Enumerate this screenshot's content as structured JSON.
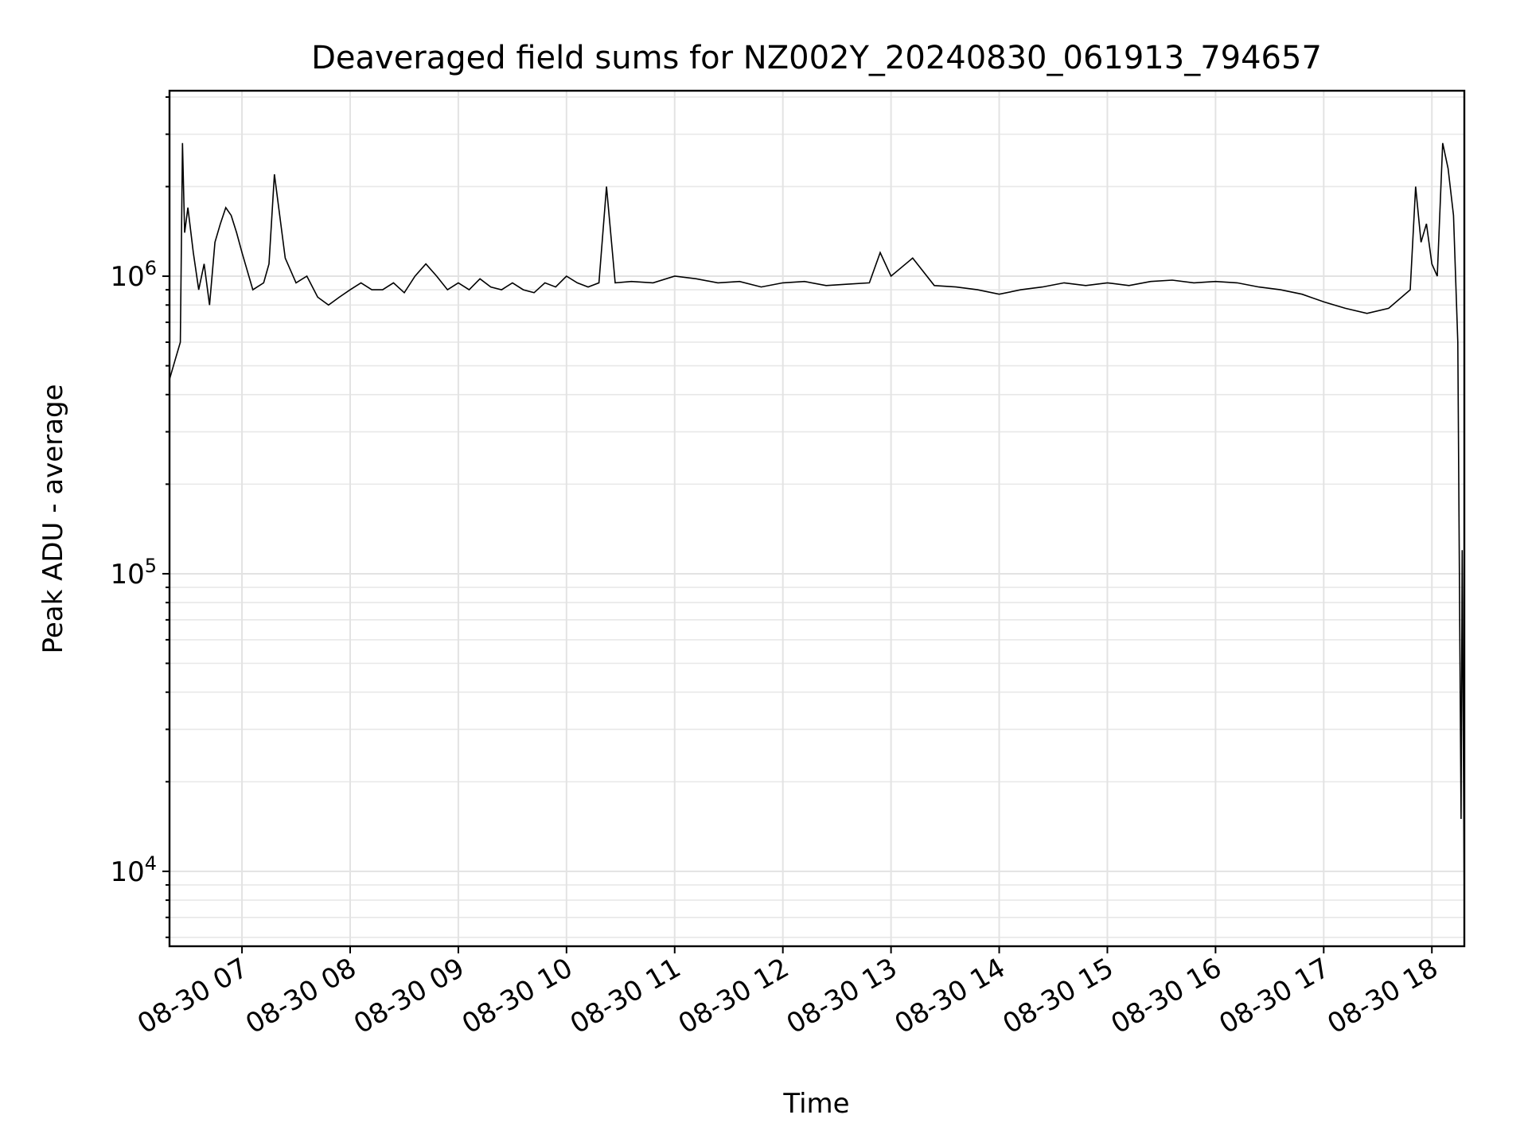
{
  "chart_data": {
    "type": "line",
    "title": "Deaveraged field sums for NZ002Y_20240830_061913_794657",
    "xlabel": "Time",
    "ylabel": "Peak ADU - average",
    "y_scale": "log",
    "ylim": [
      5600,
      4200000
    ],
    "y_ticks": [
      {
        "value": 10000,
        "base": "10",
        "exp": "4"
      },
      {
        "value": 100000,
        "base": "10",
        "exp": "5"
      },
      {
        "value": 1000000,
        "base": "10",
        "exp": "6"
      }
    ],
    "x_range_hours": [
      6.33,
      18.3
    ],
    "x_ticks": [
      {
        "hour": 7,
        "label": "08-30 07"
      },
      {
        "hour": 8,
        "label": "08-30 08"
      },
      {
        "hour": 9,
        "label": "08-30 09"
      },
      {
        "hour": 10,
        "label": "08-30 10"
      },
      {
        "hour": 11,
        "label": "08-30 11"
      },
      {
        "hour": 12,
        "label": "08-30 12"
      },
      {
        "hour": 13,
        "label": "08-30 13"
      },
      {
        "hour": 14,
        "label": "08-30 14"
      },
      {
        "hour": 15,
        "label": "08-30 15"
      },
      {
        "hour": 16,
        "label": "08-30 16"
      },
      {
        "hour": 17,
        "label": "08-30 17"
      },
      {
        "hour": 18,
        "label": "08-30 18"
      }
    ],
    "grid": true,
    "line_color": "#000000",
    "series": [
      {
        "points": [
          [
            6.33,
            450000
          ],
          [
            6.38,
            520000
          ],
          [
            6.43,
            600000
          ],
          [
            6.45,
            2800000
          ],
          [
            6.47,
            1400000
          ],
          [
            6.5,
            1700000
          ],
          [
            6.55,
            1200000
          ],
          [
            6.6,
            900000
          ],
          [
            6.65,
            1100000
          ],
          [
            6.7,
            800000
          ],
          [
            6.75,
            1300000
          ],
          [
            6.8,
            1500000
          ],
          [
            6.85,
            1700000
          ],
          [
            6.9,
            1600000
          ],
          [
            6.95,
            1400000
          ],
          [
            7.0,
            1200000
          ],
          [
            7.1,
            900000
          ],
          [
            7.2,
            950000
          ],
          [
            7.25,
            1100000
          ],
          [
            7.3,
            2200000
          ],
          [
            7.4,
            1150000
          ],
          [
            7.5,
            950000
          ],
          [
            7.6,
            1000000
          ],
          [
            7.7,
            850000
          ],
          [
            7.8,
            800000
          ],
          [
            7.9,
            850000
          ],
          [
            8.0,
            900000
          ],
          [
            8.1,
            950000
          ],
          [
            8.2,
            900000
          ],
          [
            8.3,
            900000
          ],
          [
            8.4,
            950000
          ],
          [
            8.5,
            880000
          ],
          [
            8.6,
            1000000
          ],
          [
            8.7,
            1100000
          ],
          [
            8.8,
            1000000
          ],
          [
            8.9,
            900000
          ],
          [
            9.0,
            950000
          ],
          [
            9.1,
            900000
          ],
          [
            9.2,
            980000
          ],
          [
            9.3,
            920000
          ],
          [
            9.4,
            900000
          ],
          [
            9.5,
            950000
          ],
          [
            9.6,
            900000
          ],
          [
            9.7,
            880000
          ],
          [
            9.8,
            950000
          ],
          [
            9.9,
            920000
          ],
          [
            10.0,
            1000000
          ],
          [
            10.1,
            950000
          ],
          [
            10.2,
            920000
          ],
          [
            10.3,
            950000
          ],
          [
            10.37,
            2000000
          ],
          [
            10.45,
            950000
          ],
          [
            10.6,
            960000
          ],
          [
            10.8,
            950000
          ],
          [
            11.0,
            1000000
          ],
          [
            11.2,
            980000
          ],
          [
            11.4,
            950000
          ],
          [
            11.6,
            960000
          ],
          [
            11.8,
            920000
          ],
          [
            12.0,
            950000
          ],
          [
            12.2,
            960000
          ],
          [
            12.4,
            930000
          ],
          [
            12.6,
            940000
          ],
          [
            12.8,
            950000
          ],
          [
            12.9,
            1200000
          ],
          [
            13.0,
            1000000
          ],
          [
            13.2,
            1150000
          ],
          [
            13.4,
            930000
          ],
          [
            13.6,
            920000
          ],
          [
            13.8,
            900000
          ],
          [
            14.0,
            870000
          ],
          [
            14.2,
            900000
          ],
          [
            14.4,
            920000
          ],
          [
            14.6,
            950000
          ],
          [
            14.8,
            930000
          ],
          [
            15.0,
            950000
          ],
          [
            15.2,
            930000
          ],
          [
            15.4,
            960000
          ],
          [
            15.6,
            970000
          ],
          [
            15.8,
            950000
          ],
          [
            16.0,
            960000
          ],
          [
            16.2,
            950000
          ],
          [
            16.4,
            920000
          ],
          [
            16.6,
            900000
          ],
          [
            16.8,
            870000
          ],
          [
            17.0,
            820000
          ],
          [
            17.2,
            780000
          ],
          [
            17.4,
            750000
          ],
          [
            17.6,
            780000
          ],
          [
            17.8,
            900000
          ],
          [
            17.85,
            2000000
          ],
          [
            17.9,
            1300000
          ],
          [
            17.95,
            1500000
          ],
          [
            18.0,
            1100000
          ],
          [
            18.05,
            1000000
          ],
          [
            18.1,
            2800000
          ],
          [
            18.15,
            2300000
          ],
          [
            18.2,
            1600000
          ],
          [
            18.24,
            600000
          ],
          [
            18.27,
            15000
          ],
          [
            18.28,
            120000
          ],
          [
            18.3,
            7500
          ]
        ]
      }
    ]
  }
}
